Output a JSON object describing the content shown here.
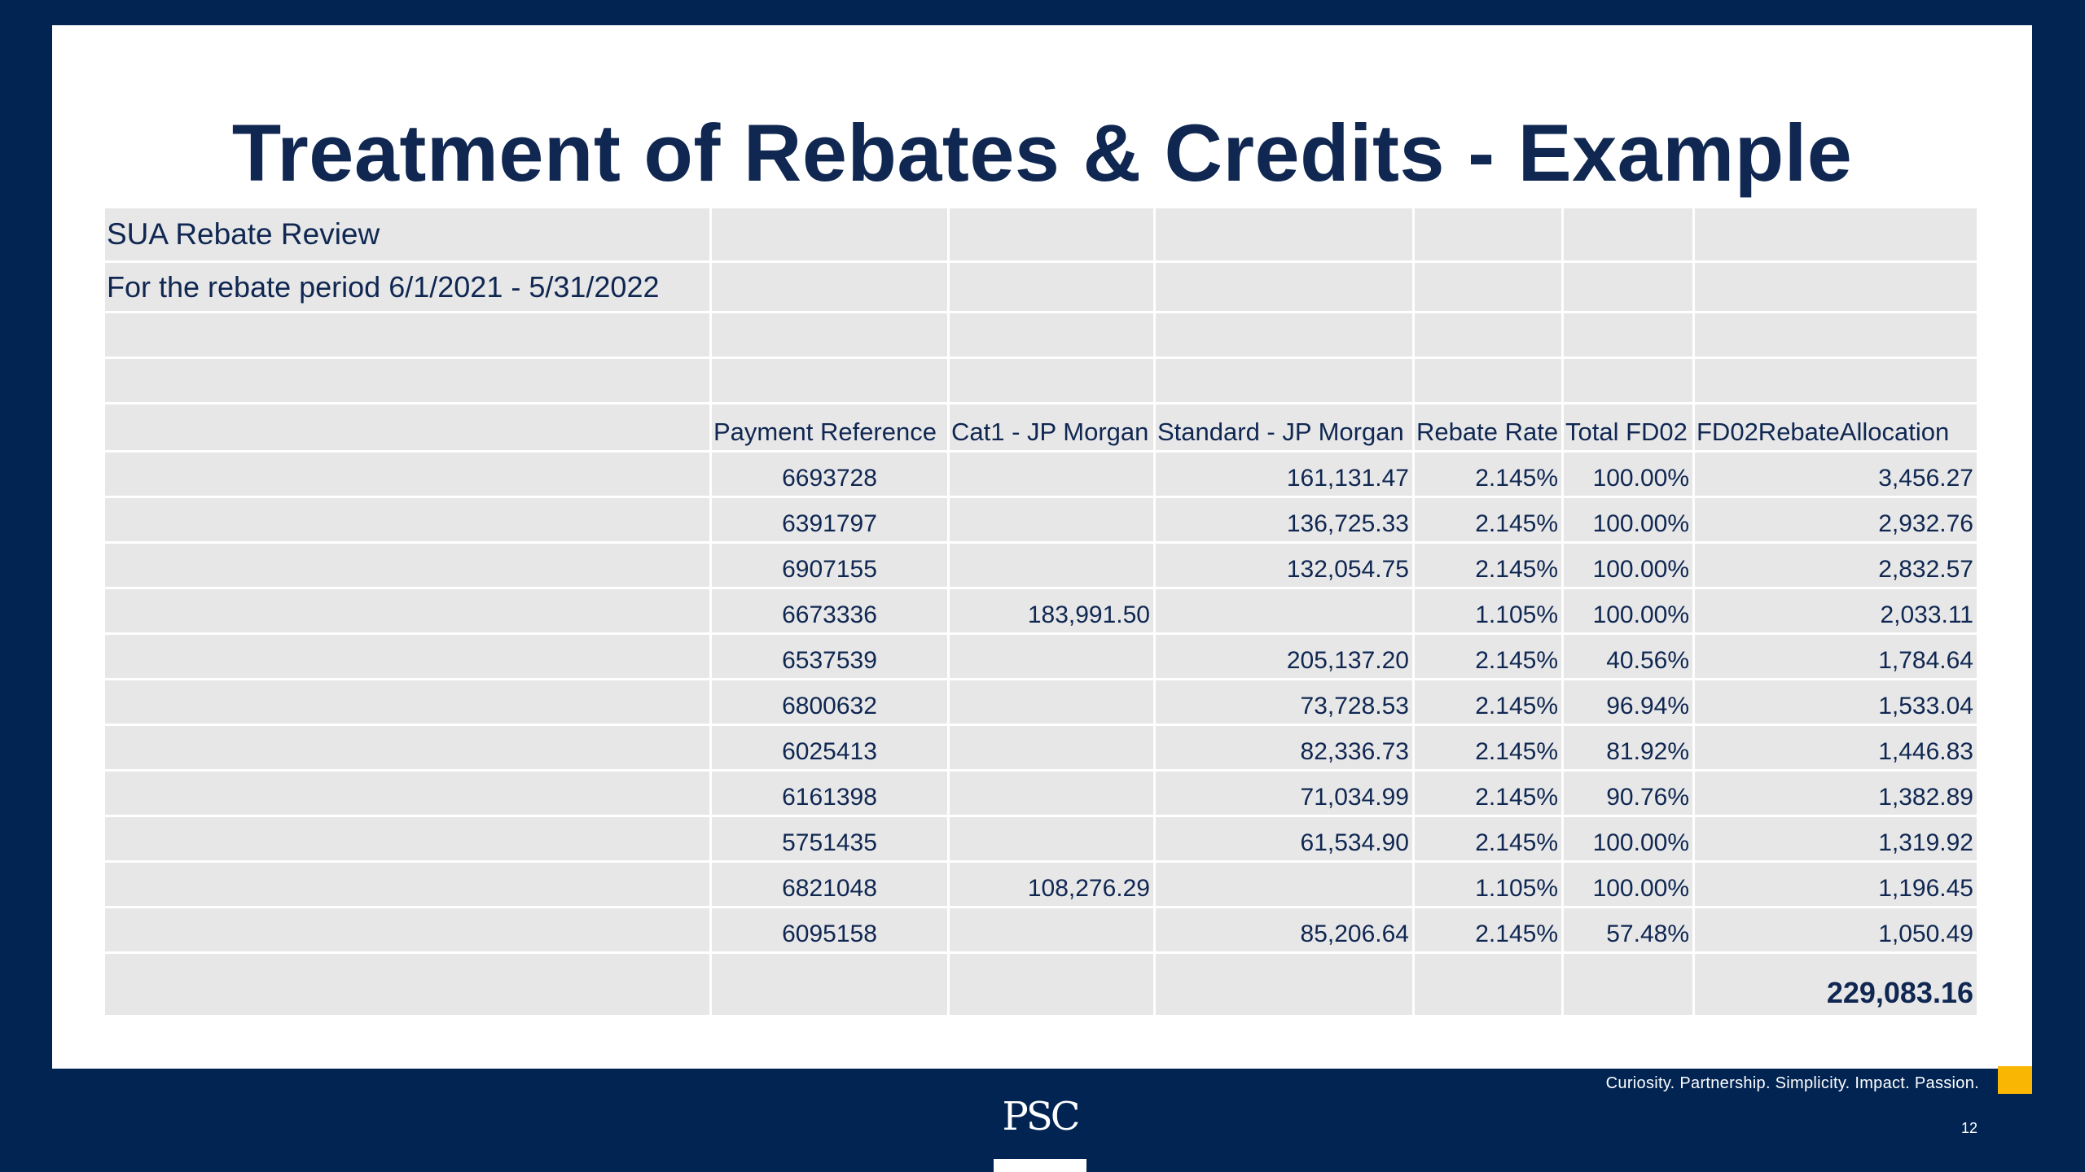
{
  "slide": {
    "title": "Treatment of Rebates & Credits - Example",
    "tagline": "Curiosity. Partnership. Simplicity. Impact. Passion.",
    "page_number": "12",
    "logo_text": "PSC",
    "accent_color": "#f9b703",
    "background_color": "#012453"
  },
  "table": {
    "heading": "SUA Rebate Review",
    "subheading": "For the rebate period 6/1/2021 - 5/31/2022",
    "columns": [
      "Payment Reference",
      "Cat1 - JP Morgan",
      "Standard - JP Morgan",
      "Rebate Rate",
      "Total FD02",
      "FD02RebateAllocation"
    ],
    "rows": [
      [
        "6693728",
        "",
        "161,131.47",
        "2.145%",
        "100.00%",
        "3,456.27"
      ],
      [
        "6391797",
        "",
        "136,725.33",
        "2.145%",
        "100.00%",
        "2,932.76"
      ],
      [
        "6907155",
        "",
        "132,054.75",
        "2.145%",
        "100.00%",
        "2,832.57"
      ],
      [
        "6673336",
        "183,991.50",
        "",
        "1.105%",
        "100.00%",
        "2,033.11"
      ],
      [
        "6537539",
        "",
        "205,137.20",
        "2.145%",
        "40.56%",
        "1,784.64"
      ],
      [
        "6800632",
        "",
        "73,728.53",
        "2.145%",
        "96.94%",
        "1,533.04"
      ],
      [
        "6025413",
        "",
        "82,336.73",
        "2.145%",
        "81.92%",
        "1,446.83"
      ],
      [
        "6161398",
        "",
        "71,034.99",
        "2.145%",
        "90.76%",
        "1,382.89"
      ],
      [
        "5751435",
        "",
        "61,534.90",
        "2.145%",
        "100.00%",
        "1,319.92"
      ],
      [
        "6821048",
        "108,276.29",
        "",
        "1.105%",
        "100.00%",
        "1,196.45"
      ],
      [
        "6095158",
        "",
        "85,206.64",
        "2.145%",
        "57.48%",
        "1,050.49"
      ]
    ],
    "total": "229,083.16"
  }
}
